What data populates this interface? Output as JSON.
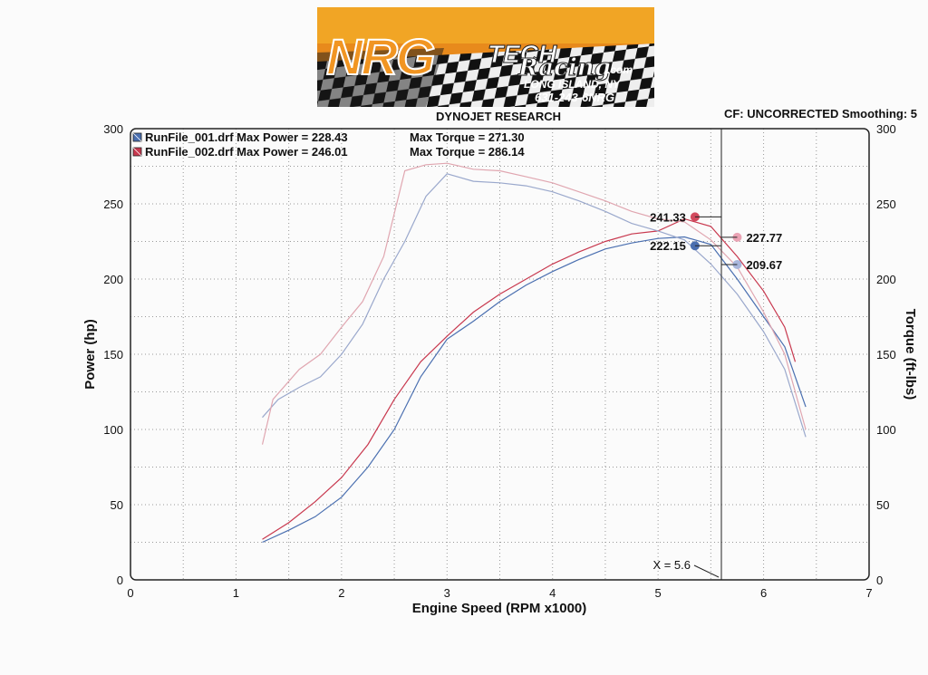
{
  "header": {
    "logo_main": "NRG",
    "logo_sub1": "TECH",
    "logo_sub2": "Racing",
    "logo_dotcom": ".com",
    "logo_location": "LONG ISLAND, NY",
    "logo_phone": "631-243-6NRG",
    "title": "DYNOJET RESEARCH",
    "cf_info": "CF: UNCORRECTED  Smoothing: 5"
  },
  "legend": [
    {
      "label": "RunFile_001.drf Max Power = 228.43",
      "torque_label": "Max Torque = 271.30",
      "color": "#4a6fb0"
    },
    {
      "label": "RunFile_002.drf Max Power = 246.01",
      "torque_label": "Max Torque = 286.14",
      "color": "#c8384e"
    }
  ],
  "chart_data": {
    "type": "line",
    "xlabel": "Engine Speed (RPM x1000)",
    "ylabel": "Power (hp)",
    "y2label": "Torque (ft-lbs)",
    "xlim": [
      0,
      7
    ],
    "ylim": [
      0,
      300
    ],
    "y2lim": [
      0,
      300
    ],
    "xticks": [
      0,
      1,
      2,
      3,
      4,
      5,
      6,
      7
    ],
    "yticks": [
      0,
      50,
      100,
      150,
      200,
      250,
      300
    ],
    "y2ticks": [
      0,
      50,
      100,
      150,
      200,
      250,
      300
    ],
    "grid": true,
    "series": [
      {
        "name": "RunFile_001.drf Power",
        "color": "#4a6fb0",
        "x": [
          1.25,
          1.5,
          1.75,
          2.0,
          2.25,
          2.5,
          2.75,
          3.0,
          3.25,
          3.5,
          3.75,
          4.0,
          4.25,
          4.5,
          4.75,
          5.0,
          5.25,
          5.5,
          5.75,
          6.0,
          6.2,
          6.4
        ],
        "y": [
          25,
          33,
          42,
          55,
          75,
          100,
          135,
          160,
          172,
          185,
          196,
          205,
          213,
          220,
          224,
          227,
          228,
          223,
          200,
          175,
          155,
          115
        ]
      },
      {
        "name": "RunFile_002.drf Power",
        "color": "#c8384e",
        "x": [
          1.25,
          1.5,
          1.75,
          2.0,
          2.25,
          2.5,
          2.75,
          3.0,
          3.25,
          3.5,
          3.75,
          4.0,
          4.25,
          4.5,
          4.75,
          5.0,
          5.25,
          5.5,
          5.75,
          6.0,
          6.2,
          6.3
        ],
        "y": [
          27,
          38,
          52,
          68,
          90,
          120,
          145,
          162,
          178,
          190,
          200,
          210,
          218,
          225,
          230,
          232,
          240,
          235,
          215,
          192,
          168,
          145
        ]
      },
      {
        "name": "RunFile_001.drf Torque",
        "color": "#9aa8cc",
        "x": [
          1.25,
          1.4,
          1.6,
          1.8,
          2.0,
          2.2,
          2.4,
          2.6,
          2.8,
          3.0,
          3.25,
          3.5,
          3.75,
          4.0,
          4.25,
          4.5,
          4.75,
          5.0,
          5.25,
          5.5,
          5.75,
          6.0,
          6.2,
          6.4
        ],
        "y": [
          108,
          120,
          128,
          135,
          150,
          170,
          200,
          225,
          255,
          270,
          265,
          264,
          262,
          258,
          252,
          245,
          237,
          232,
          226,
          210,
          190,
          165,
          140,
          95
        ]
      },
      {
        "name": "RunFile_002.drf Torque",
        "color": "#e0a6b0",
        "x": [
          1.25,
          1.35,
          1.6,
          1.8,
          2.0,
          2.2,
          2.4,
          2.6,
          2.8,
          3.0,
          3.25,
          3.5,
          3.75,
          4.0,
          4.25,
          4.5,
          4.75,
          5.0,
          5.25,
          5.5,
          5.75,
          6.0,
          6.2,
          6.4
        ],
        "y": [
          90,
          120,
          140,
          150,
          168,
          185,
          215,
          272,
          276,
          277,
          273,
          272,
          268,
          264,
          258,
          252,
          245,
          240,
          238,
          226,
          208,
          178,
          150,
          100
        ]
      }
    ],
    "annotations": [
      {
        "text": "241.33",
        "x": 5.35,
        "y": 241.33,
        "color": "#d24a5e"
      },
      {
        "text": "222.15",
        "x": 5.35,
        "y": 222.15,
        "color": "#4a6fb0"
      },
      {
        "text": "227.77",
        "x": 5.75,
        "y": 227.77,
        "color": "#eaa3b4"
      },
      {
        "text": "209.67",
        "x": 5.75,
        "y": 209.67,
        "color": "#a9b6dc"
      }
    ],
    "cursor": {
      "x": 5.6,
      "label": "X = 5.6"
    }
  }
}
